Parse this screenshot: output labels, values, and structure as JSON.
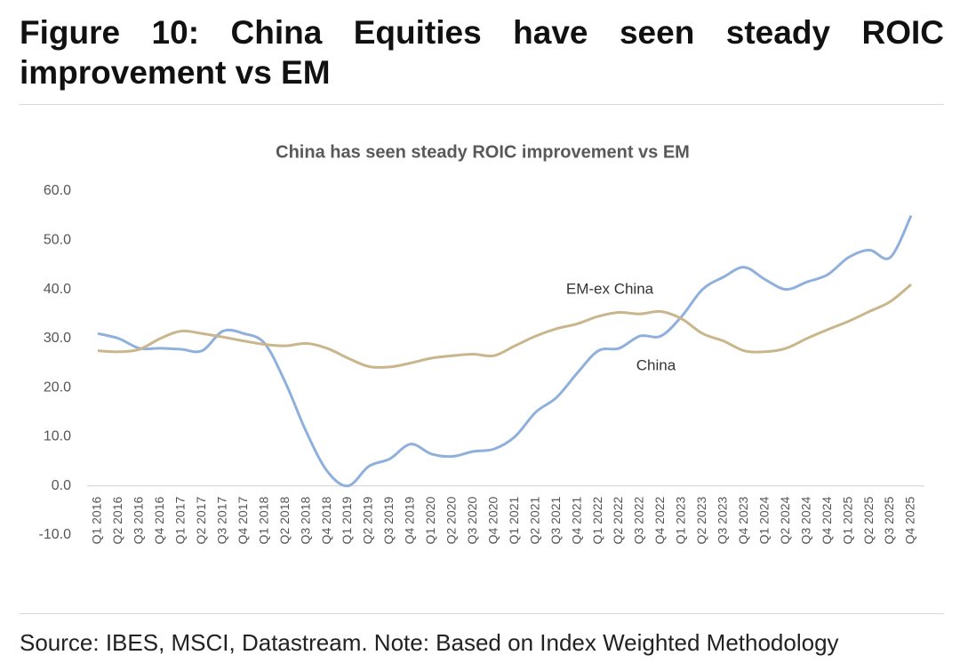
{
  "header": {
    "title": "Figure 10: China Equities have seen steady ROIC improvement vs EM"
  },
  "chart_data": {
    "type": "line",
    "title": "China has seen steady ROIC improvement vs EM",
    "categories": [
      "Q1 2016",
      "Q2 2016",
      "Q3 2016",
      "Q4 2016",
      "Q1 2017",
      "Q2 2017",
      "Q3 2017",
      "Q4 2017",
      "Q1 2018",
      "Q2 2018",
      "Q3 2018",
      "Q4 2018",
      "Q1 2019",
      "Q2 2019",
      "Q3 2019",
      "Q4 2019",
      "Q1 2020",
      "Q2 2020",
      "Q3 2020",
      "Q4 2020",
      "Q1 2021",
      "Q2 2021",
      "Q3 2021",
      "Q4 2021",
      "Q1 2022",
      "Q2 2022",
      "Q3 2022",
      "Q4 2022",
      "Q1 2023",
      "Q2 2023",
      "Q3 2023",
      "Q4 2023",
      "Q1 2024",
      "Q2 2024",
      "Q3 2024",
      "Q4 2024",
      "Q1 2025",
      "Q2 2025",
      "Q3 2025",
      "Q4 2025"
    ],
    "series": [
      {
        "name": "China",
        "color": "#8fb0dc",
        "values": [
          31,
          30,
          28,
          28,
          27.8,
          27.5,
          31.5,
          31,
          29,
          21,
          11,
          3,
          0,
          4,
          5.5,
          8.5,
          6.5,
          6,
          7,
          7.5,
          10,
          15,
          18,
          23,
          27.5,
          28,
          30.5,
          30.5,
          34.5,
          40,
          42.5,
          44.5,
          42,
          40,
          41.5,
          43,
          46.5,
          48,
          46.5,
          55
        ]
      },
      {
        "name": "EM-ex China",
        "color": "#c9b68c",
        "values": [
          27.5,
          27.3,
          27.8,
          30,
          31.5,
          31,
          30.3,
          29.5,
          28.8,
          28.5,
          29,
          28,
          26,
          24.3,
          24.2,
          25,
          26,
          26.5,
          26.8,
          26.5,
          28.5,
          30.5,
          32,
          33,
          34.5,
          35.3,
          35,
          35.5,
          34,
          31,
          29.5,
          27.5,
          27.3,
          28,
          30,
          31.8,
          33.5,
          35.5,
          37.5,
          41
        ]
      }
    ],
    "ylim": [
      -10,
      60
    ],
    "yticks": [
      {
        "value": -10,
        "label": "-10.0"
      },
      {
        "value": 0,
        "label": "0.0"
      },
      {
        "value": 10,
        "label": "10.0"
      },
      {
        "value": 20,
        "label": "20.0"
      },
      {
        "value": 30,
        "label": "30.0"
      },
      {
        "value": 40,
        "label": "40.0"
      },
      {
        "value": 50,
        "label": "50.0"
      },
      {
        "value": 60,
        "label": "60.0"
      }
    ],
    "grid": false
  },
  "footer": {
    "source": "Source: IBES, MSCI, Datastream. Note: Based on Index Weighted Methodology"
  }
}
